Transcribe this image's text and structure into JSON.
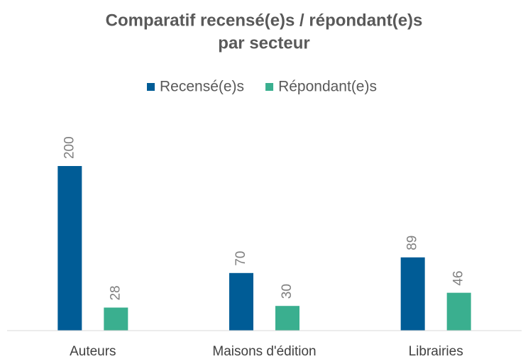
{
  "chart_data": {
    "type": "bar",
    "title": [
      "Comparatif recensé(e)s / répondant(e)s",
      "par secteur"
    ],
    "categories": [
      "Auteurs",
      "Maisons d'édition",
      "Librairies"
    ],
    "series": [
      {
        "name": "Recensé(e)s",
        "color": "#005c96",
        "values": [
          200,
          70,
          89
        ]
      },
      {
        "name": "Répondant(e)s",
        "color": "#3aaf8f",
        "values": [
          28,
          30,
          46
        ]
      }
    ],
    "ylim": [
      0,
      200
    ],
    "legend": "top",
    "data_labels": true
  }
}
